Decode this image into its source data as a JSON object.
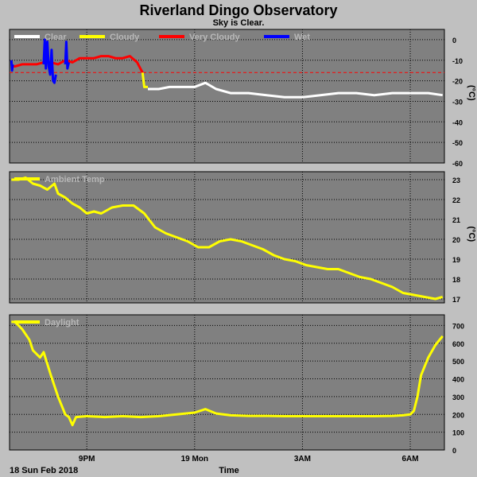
{
  "title": "Riverland Dingo Observatory",
  "subtitle": "Sky is Clear.",
  "footer": {
    "date_label": "18 Sun Feb 2018",
    "xlabel": "Time"
  },
  "colors": {
    "background": "#c0c0c0",
    "plot": "#808080",
    "grid": "#000000",
    "clear": "#ffffff",
    "cloudy": "#ffff00",
    "very_cloudy": "#ff0000",
    "wet": "#0000ff",
    "threshold": "#ff0000"
  },
  "chart_data": [
    {
      "type": "line",
      "legend": [
        "Clear",
        "Cloudy",
        "Very Cloudy",
        "Wet"
      ],
      "ylabel": "(°C)",
      "ylim": [
        -60,
        5
      ],
      "yticks": [
        0,
        -10,
        -20,
        -30,
        -40,
        -50,
        -60
      ],
      "threshold": -16,
      "x_hours_ticks": [
        21,
        24,
        27,
        30
      ],
      "x_tick_labels": [
        "9PM",
        "19 Mon",
        "3AM",
        "6AM"
      ],
      "xlim": [
        18.85,
        30.95
      ],
      "series": [
        {
          "name": "Very Cloudy",
          "x": [
            18.9,
            19.0,
            19.2,
            19.4,
            19.6,
            19.8,
            20.0,
            20.2,
            20.4,
            20.6,
            20.8,
            21.0,
            21.2,
            21.4,
            21.6,
            21.8,
            22.0,
            22.2,
            22.4,
            22.55
          ],
          "y": [
            -13,
            -13,
            -12,
            -12,
            -12,
            -11,
            -11,
            -12,
            -10,
            -11,
            -9,
            -9,
            -9,
            -8,
            -8,
            -9,
            -9,
            -8,
            -11,
            -16
          ]
        },
        {
          "name": "Wet",
          "segments": [
            {
              "x": [
                18.9,
                18.92,
                18.94
              ],
              "y": [
                -10,
                -15,
                -12
              ]
            },
            {
              "x": [
                19.8,
                19.83,
                19.86,
                19.9,
                19.94,
                19.98,
                20.02,
                20.06,
                20.1,
                20.14
              ],
              "y": [
                -12,
                0,
                -14,
                -1,
                -13,
                -17,
                -5,
                -20,
                -21,
                -17
              ]
            },
            {
              "x": [
                20.4,
                20.43,
                20.46,
                20.5
              ],
              "y": [
                -12,
                -1,
                -14,
                -11
              ]
            }
          ]
        },
        {
          "name": "Cloudy",
          "x": [
            22.55,
            22.6,
            22.7
          ],
          "y": [
            -16,
            -23,
            -23
          ]
        },
        {
          "name": "Clear",
          "x": [
            22.7,
            23.0,
            23.3,
            23.6,
            24.0,
            24.3,
            24.6,
            25.0,
            25.5,
            26.0,
            26.5,
            27.0,
            27.5,
            28.0,
            28.5,
            29.0,
            29.5,
            30.0,
            30.5,
            30.9
          ],
          "y": [
            -24,
            -24,
            -23,
            -23,
            -23,
            -21,
            -24,
            -26,
            -26,
            -27,
            -28,
            -28,
            -27,
            -26,
            -26,
            -27,
            -26,
            -26,
            -26,
            -27
          ]
        }
      ]
    },
    {
      "type": "line",
      "legend": [
        "Ambient Temp"
      ],
      "ylabel": "(°C)",
      "ylim": [
        16.8,
        23.4
      ],
      "yticks": [
        17,
        18,
        19,
        20,
        21,
        22,
        23
      ],
      "x_hours_ticks": [
        21,
        24,
        27,
        30
      ],
      "x_tick_labels": [
        "9PM",
        "19 Mon",
        "3AM",
        "6AM"
      ],
      "xlim": [
        18.85,
        30.95
      ],
      "series": [
        {
          "name": "Ambient Temp",
          "x": [
            18.9,
            19.1,
            19.3,
            19.5,
            19.7,
            19.9,
            20.1,
            20.2,
            20.4,
            20.6,
            20.8,
            21.0,
            21.2,
            21.4,
            21.7,
            22.0,
            22.3,
            22.6,
            22.9,
            23.2,
            23.5,
            23.8,
            24.1,
            24.4,
            24.7,
            25.0,
            25.3,
            25.6,
            25.9,
            26.2,
            26.5,
            26.8,
            27.1,
            27.4,
            27.7,
            28.0,
            28.3,
            28.6,
            28.9,
            29.2,
            29.5,
            29.8,
            30.1,
            30.4,
            30.7,
            30.9
          ],
          "y": [
            23.0,
            23.0,
            23.1,
            22.8,
            22.7,
            22.5,
            22.8,
            22.3,
            22.1,
            21.8,
            21.6,
            21.3,
            21.4,
            21.3,
            21.6,
            21.7,
            21.7,
            21.3,
            20.6,
            20.3,
            20.1,
            19.9,
            19.6,
            19.6,
            19.9,
            20.0,
            19.9,
            19.7,
            19.5,
            19.2,
            19.0,
            18.9,
            18.7,
            18.6,
            18.5,
            18.5,
            18.3,
            18.1,
            18.0,
            17.8,
            17.6,
            17.3,
            17.2,
            17.1,
            17.0,
            17.1
          ]
        }
      ]
    },
    {
      "type": "line",
      "legend": [
        "Daylight"
      ],
      "ylim": [
        0,
        760
      ],
      "yticks": [
        0,
        100,
        200,
        300,
        400,
        500,
        600,
        700
      ],
      "x_hours_ticks": [
        21,
        24,
        27,
        30
      ],
      "x_tick_labels": [
        "9PM",
        "19 Mon",
        "3AM",
        "6AM"
      ],
      "xlim": [
        18.85,
        30.95
      ],
      "series": [
        {
          "name": "Daylight",
          "x": [
            18.9,
            19.0,
            19.2,
            19.4,
            19.5,
            19.7,
            19.8,
            20.0,
            20.2,
            20.4,
            20.5,
            20.6,
            20.7,
            21.0,
            21.5,
            22.0,
            22.5,
            23.0,
            23.5,
            24.0,
            24.3,
            24.6,
            25.0,
            25.5,
            26.0,
            26.5,
            27.0,
            27.5,
            28.0,
            28.5,
            29.0,
            29.5,
            29.8,
            30.0,
            30.1,
            30.2,
            30.3,
            30.5,
            30.7,
            30.9
          ],
          "y": [
            720,
            720,
            680,
            620,
            560,
            520,
            550,
            420,
            300,
            200,
            185,
            140,
            185,
            190,
            185,
            190,
            185,
            190,
            200,
            210,
            230,
            205,
            195,
            192,
            192,
            190,
            190,
            190,
            190,
            190,
            190,
            192,
            195,
            200,
            220,
            300,
            420,
            520,
            590,
            640
          ]
        }
      ]
    }
  ]
}
